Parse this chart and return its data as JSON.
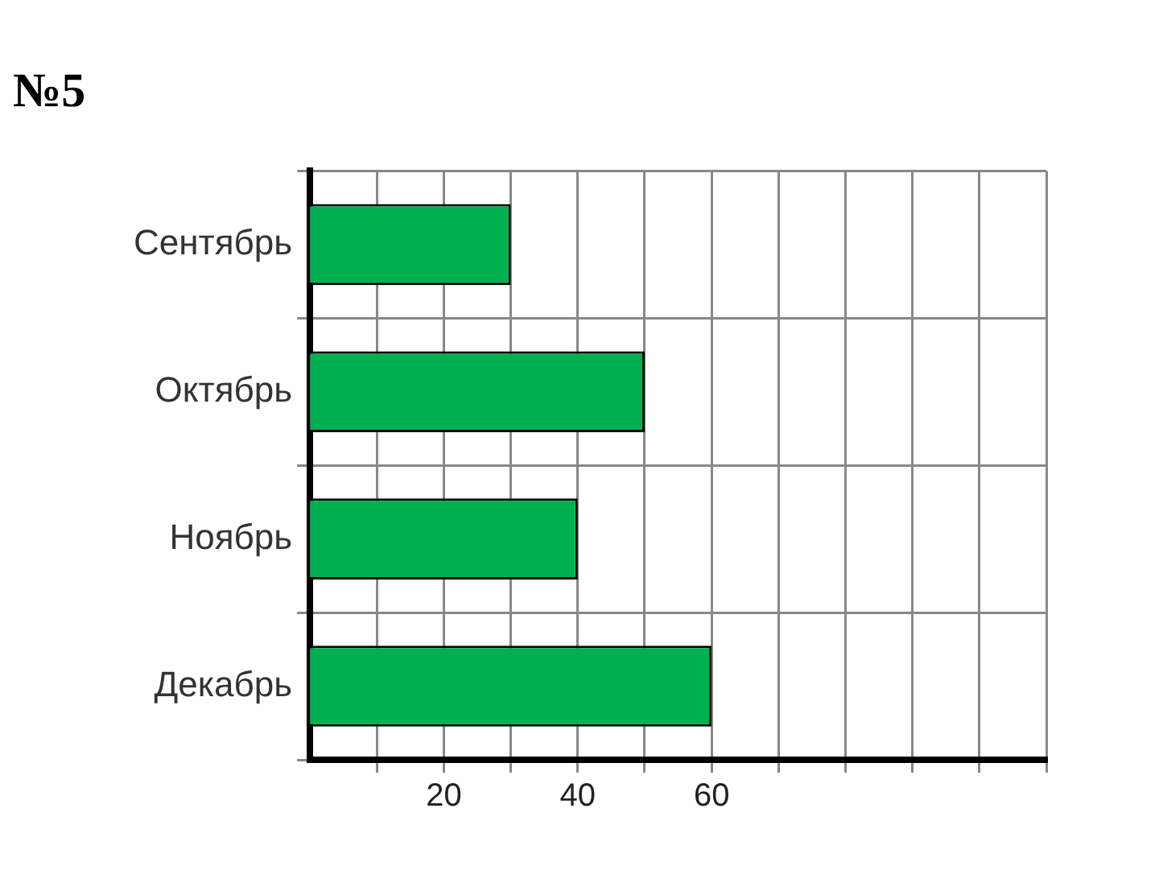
{
  "chart_data": {
    "type": "bar",
    "orientation": "horizontal",
    "title": "№5",
    "categories": [
      "Сентябрь",
      "Октябрь",
      "Ноябрь",
      "Декабрь"
    ],
    "values": [
      30,
      50,
      40,
      60
    ],
    "color": "#00b050",
    "xlim": [
      0,
      110
    ],
    "xticks": [
      {
        "value": 10,
        "label": null
      },
      20,
      {
        "value": 30,
        "label": null
      },
      40,
      {
        "value": 50,
        "label": null
      },
      60,
      {
        "value": 70,
        "label": null
      },
      {
        "value": 80,
        "label": null
      },
      {
        "value": 90,
        "label": null
      },
      {
        "value": 100,
        "label": null
      },
      {
        "value": 110,
        "label": null
      }
    ],
    "grid": true
  }
}
